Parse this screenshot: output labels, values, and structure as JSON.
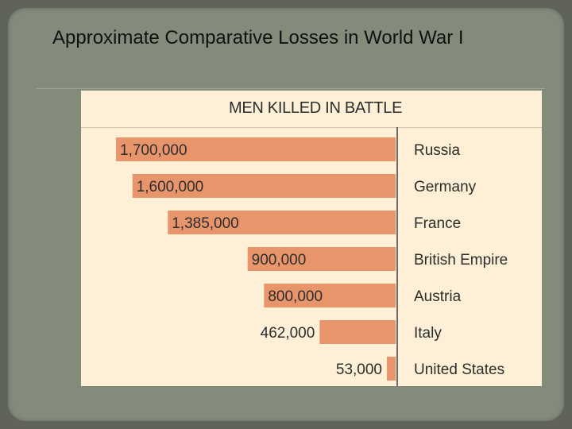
{
  "slide": {
    "title": "Approximate Comparative Losses in World War I"
  },
  "chart_data": {
    "type": "bar",
    "orientation": "horizontal",
    "title": "MEN KILLED IN BATTLE",
    "categories": [
      "Russia",
      "Germany",
      "France",
      "British Empire",
      "Austria",
      "Italy",
      "United States"
    ],
    "values": [
      1700000,
      1600000,
      1385000,
      900000,
      800000,
      462000,
      53000
    ],
    "value_labels": [
      "1,700,000",
      "1,600,000",
      "1,385,000",
      "900,000",
      "800,000",
      "462,000",
      "53,000"
    ],
    "xlim": [
      0,
      1700000
    ],
    "bar_direction": "right-to-left",
    "grid": false,
    "colors": {
      "bar": "#e8956b",
      "background": "#fdf0d6"
    }
  }
}
